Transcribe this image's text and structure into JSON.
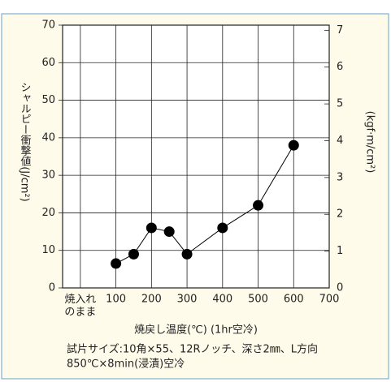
{
  "chart_data": {
    "type": "line",
    "ylabel": "シャルピー衝撃値(J/cm²)",
    "y2label": "(kgf·m/cm²)",
    "xlabel": "焼戻し温度(℃) (1hr空冷)",
    "notes": [
      "試片サイズ:10角×55、12Rノッチ、深さ2㎜、L方向",
      "850℃×8min(浸漬)空冷"
    ],
    "x": [
      100,
      150,
      200,
      250,
      300,
      400,
      500,
      600
    ],
    "series": [
      {
        "name": "シャルピー衝撃値",
        "color": "#000000",
        "values": [
          6.5,
          9,
          16,
          15,
          9,
          16,
          22,
          38
        ]
      }
    ],
    "xlim": [
      -50,
      700
    ],
    "xticks": [
      {
        "value": 0,
        "label": "焼入れ\nのまま"
      },
      100,
      200,
      300,
      400,
      500,
      600,
      700
    ],
    "ylim": [
      0,
      70
    ],
    "yticks": [
      0,
      10,
      20,
      30,
      40,
      50,
      60,
      70
    ],
    "y2lim": [
      0,
      7.14
    ],
    "y2ticks": [
      0,
      1,
      2,
      3,
      4,
      5,
      6,
      7
    ],
    "grid": true
  }
}
